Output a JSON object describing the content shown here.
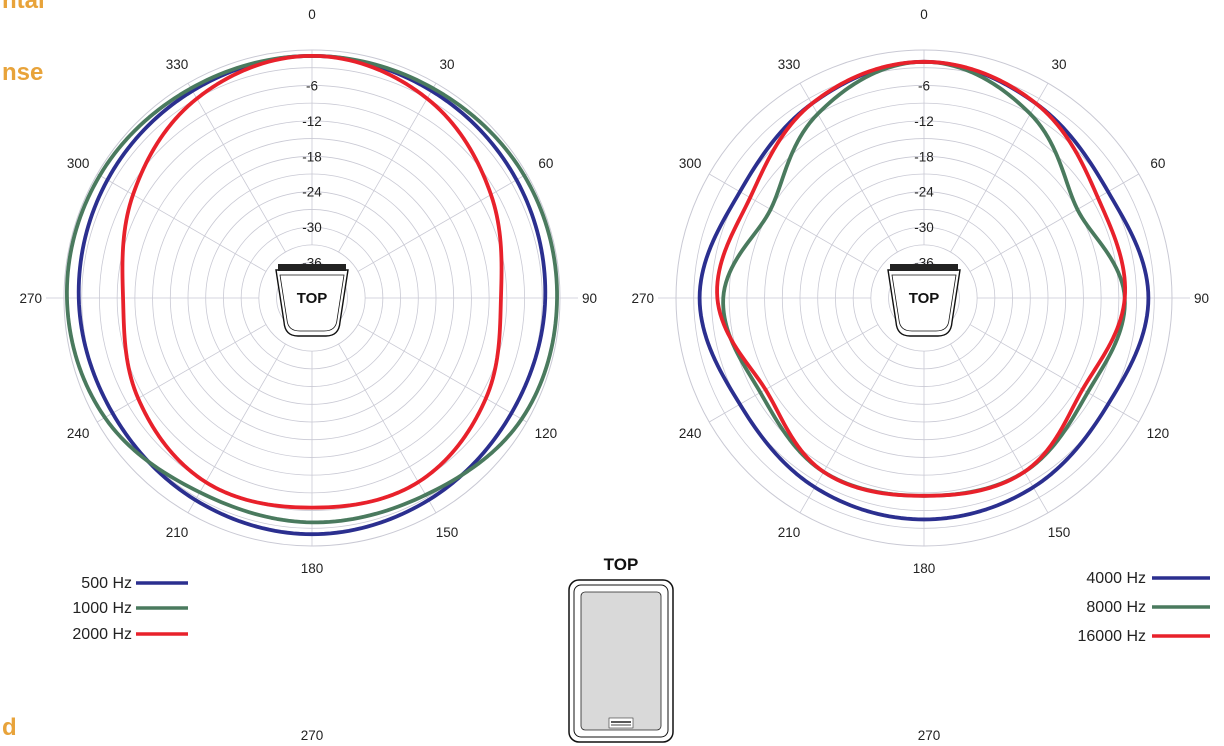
{
  "heading_fragments": [
    "ntal",
    "nse",
    "d"
  ],
  "bottom_labels": [
    "270",
    "270"
  ],
  "icon_label": "TOP",
  "device_label": "TOP",
  "colors": {
    "grid": "#c9c9d4",
    "heading": "#e8a33a",
    "text": "#222222"
  },
  "chart_data": [
    {
      "type": "polar-line",
      "angle_labels": [
        "0",
        "30",
        "60",
        "90",
        "120",
        "150",
        "180",
        "210",
        "240",
        "270",
        "300",
        "330"
      ],
      "radial_ticks": [
        "-6",
        "-12",
        "-18",
        "-24",
        "-30",
        "-36"
      ],
      "rlim": [
        -42,
        0
      ],
      "series": [
        {
          "name": "500 Hz",
          "color": "#2b2f8f",
          "angles": [
            0,
            30,
            60,
            90,
            120,
            150,
            180,
            210,
            240,
            270,
            300,
            330
          ],
          "values": [
            -1,
            -1.5,
            -2,
            -2.5,
            -3,
            -2.5,
            -2,
            -2.5,
            -3,
            -2.5,
            -2,
            -1.5
          ]
        },
        {
          "name": "1000 Hz",
          "color": "#4a7a5e",
          "angles": [
            0,
            30,
            60,
            90,
            120,
            150,
            180,
            210,
            240,
            270,
            300,
            330
          ],
          "values": [
            -1,
            -1,
            -0.5,
            -0.5,
            -1,
            -3.5,
            -4,
            -4,
            -1.5,
            -0.5,
            -0.5,
            -1
          ]
        },
        {
          "name": "2000 Hz",
          "color": "#e8212b",
          "angles": [
            0,
            30,
            60,
            90,
            120,
            150,
            180,
            210,
            240,
            270,
            300,
            330
          ],
          "values": [
            -1,
            -3,
            -7,
            -10,
            -8,
            -6,
            -6.5,
            -6,
            -8,
            -10,
            -7,
            -3
          ]
        }
      ]
    },
    {
      "type": "polar-line",
      "angle_labels": [
        "0",
        "30",
        "60",
        "90",
        "120",
        "150",
        "180",
        "210",
        "240",
        "270",
        "300",
        "330"
      ],
      "radial_ticks": [
        "-6",
        "-12",
        "-18",
        "-24",
        "-30",
        "-36"
      ],
      "rlim": [
        -42,
        0
      ],
      "series": [
        {
          "name": "4000 Hz",
          "color": "#2b2f8f",
          "angles": [
            0,
            30,
            60,
            90,
            120,
            150,
            180,
            210,
            240,
            270,
            300,
            330
          ],
          "values": [
            -2,
            -4,
            -6,
            -4,
            -6,
            -5,
            -4.5,
            -5,
            -6,
            -4,
            -6,
            -4
          ]
        },
        {
          "name": "8000 Hz",
          "color": "#4a7a5e",
          "angles": [
            0,
            30,
            60,
            90,
            120,
            150,
            180,
            210,
            240,
            270,
            300,
            330
          ],
          "values": [
            -2,
            -6,
            -12,
            -8,
            -10,
            -8,
            -8.5,
            -8,
            -10,
            -8,
            -12,
            -6
          ]
        },
        {
          "name": "16000 Hz",
          "color": "#e8212b",
          "angles": [
            0,
            30,
            60,
            90,
            120,
            150,
            180,
            210,
            240,
            270,
            300,
            330
          ],
          "values": [
            -2,
            -4,
            -8,
            -8,
            -11,
            -8,
            -8.5,
            -8,
            -11,
            -7,
            -8,
            -4
          ]
        }
      ]
    }
  ]
}
